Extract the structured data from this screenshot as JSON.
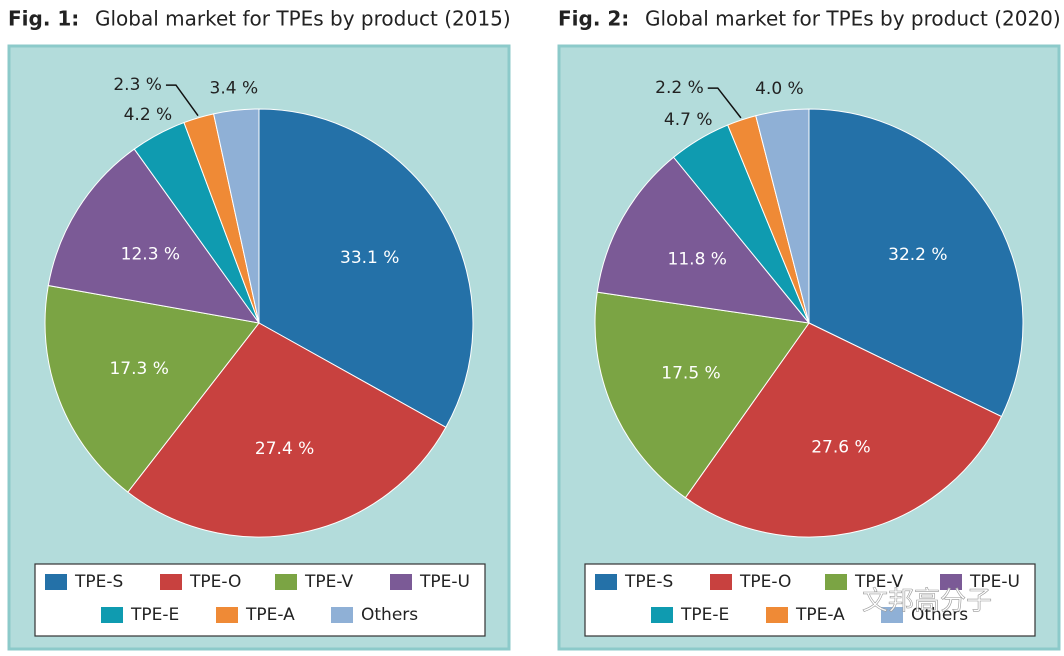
{
  "chart_data": [
    {
      "type": "pie",
      "figure_label": "Fig. 1:",
      "title": "Global market for TPEs by product (2015)",
      "categories": [
        "TPE-S",
        "TPE-O",
        "TPE-V",
        "TPE-U",
        "TPE-E",
        "TPE-A",
        "Others"
      ],
      "values": [
        33.1,
        27.4,
        17.3,
        12.3,
        4.2,
        2.3,
        3.4
      ],
      "value_labels": [
        "33.1 %",
        "27.4 %",
        "17.3 %",
        "12.3 %",
        "4.2 %",
        "2.3 %",
        "3.4 %"
      ],
      "colors": [
        "#2471a8",
        "#c8413f",
        "#7ba444",
        "#7b5a96",
        "#0f9bb0",
        "#ef8a36",
        "#8fb0d6"
      ]
    },
    {
      "type": "pie",
      "figure_label": "Fig. 2:",
      "title": "Global market for TPEs by product (2020)",
      "categories": [
        "TPE-S",
        "TPE-O",
        "TPE-V",
        "TPE-U",
        "TPE-E",
        "TPE-A",
        "Others"
      ],
      "values": [
        32.2,
        27.6,
        17.5,
        11.8,
        4.7,
        2.2,
        4.0
      ],
      "value_labels": [
        "32.2 %",
        "27.6 %",
        "17.5 %",
        "11.8 %",
        "4.7 %",
        "2.2 %",
        "4.0 %"
      ],
      "colors": [
        "#2471a8",
        "#c8413f",
        "#7ba444",
        "#7b5a96",
        "#0f9bb0",
        "#ef8a36",
        "#8fb0d6"
      ]
    }
  ],
  "watermark": "文邦高分子"
}
